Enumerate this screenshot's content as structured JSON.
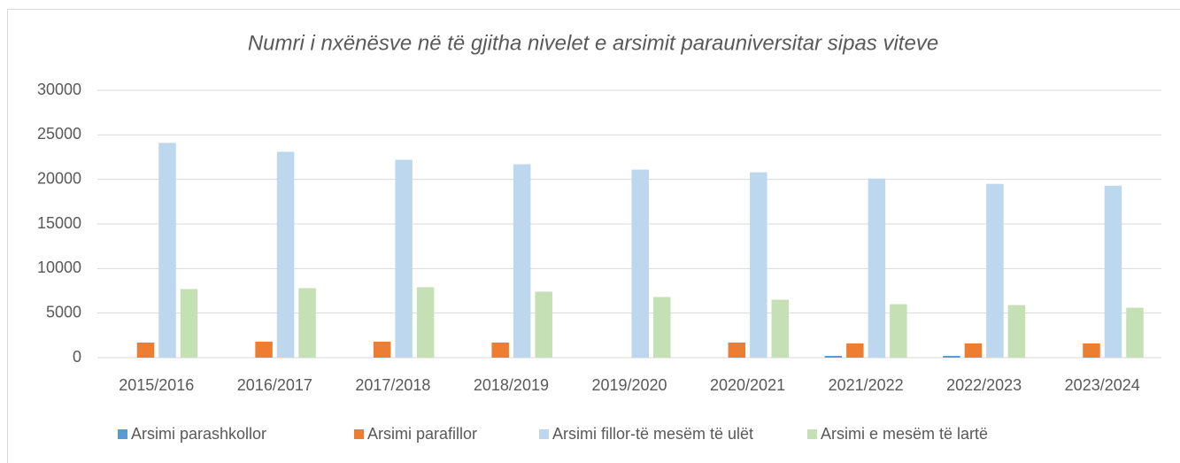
{
  "chart_data": {
    "type": "bar",
    "title": "Numri i nxënësve në të gjitha nivelet e arsimit parauniversitar sipas viteve",
    "categories": [
      "2015/2016",
      "2016/2017",
      "2017/2018",
      "2018/2019",
      "2019/2020",
      "2020/2021",
      "2021/2022",
      "2022/2023",
      "2023/2024"
    ],
    "series": [
      {
        "name": "Arsimi parashkollor",
        "color": "#5b9bd5",
        "values": [
          0,
          0,
          0,
          0,
          0,
          0,
          200,
          200,
          0
        ]
      },
      {
        "name": "Arsimi parafillor",
        "color": "#ed7d31",
        "values": [
          1700,
          1800,
          1800,
          1700,
          0,
          1700,
          1600,
          1600,
          1600
        ]
      },
      {
        "name": "Arsimi fillor-të mesëm të ulët",
        "color": "#bdd7ee",
        "values": [
          24100,
          23100,
          22200,
          21700,
          21100,
          20800,
          20100,
          19500,
          19300
        ]
      },
      {
        "name": "Arsimi e mesëm të lartë",
        "color": "#c5e0b4",
        "values": [
          7700,
          7800,
          7900,
          7400,
          6800,
          6500,
          6000,
          5900,
          5600
        ]
      }
    ],
    "ylim": [
      0,
      30000
    ],
    "yticks": [
      0,
      5000,
      10000,
      15000,
      20000,
      25000,
      30000
    ],
    "grid": true,
    "legend": "bottom"
  }
}
